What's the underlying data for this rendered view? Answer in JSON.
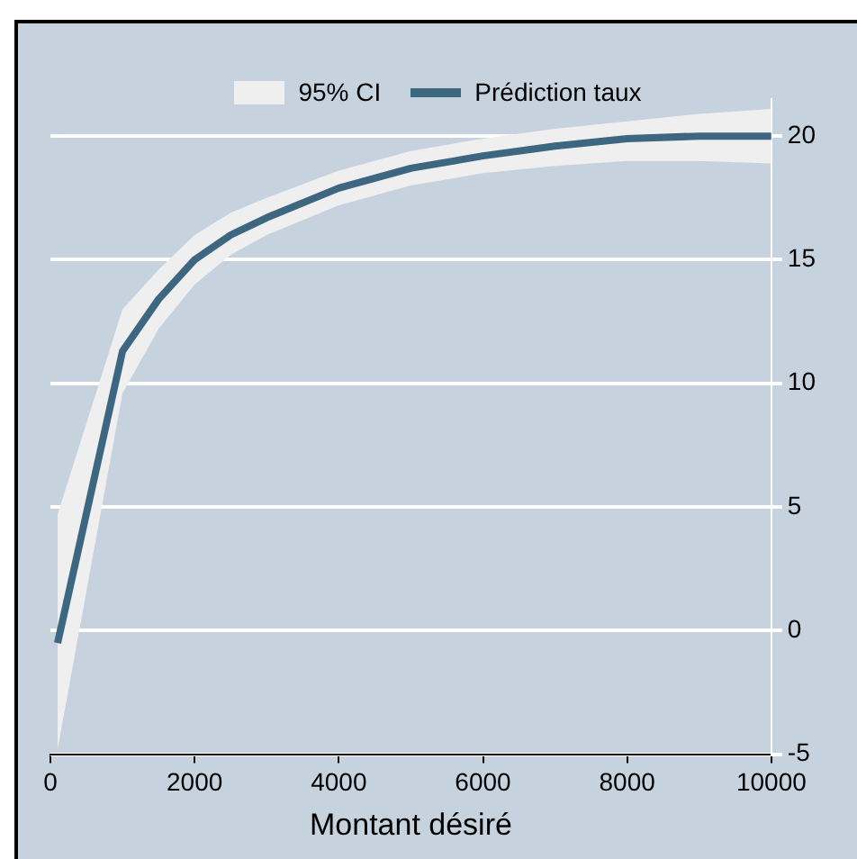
{
  "chart_data": {
    "type": "line",
    "xlabel": "Montant désiré",
    "x": [
      100,
      1000,
      1500,
      2000,
      2500,
      3000,
      4000,
      5000,
      6000,
      7000,
      8000,
      9000,
      10000
    ],
    "series": [
      {
        "name": "Prédiction taux",
        "color": "#3d6680",
        "values": [
          -0.5,
          11.3,
          13.4,
          15.0,
          16.0,
          16.7,
          17.9,
          18.7,
          19.2,
          19.6,
          19.9,
          20.0,
          20.0
        ],
        "lower": [
          -4.8,
          9.6,
          12.2,
          14.0,
          15.2,
          16.0,
          17.2,
          18.0,
          18.5,
          18.8,
          19.0,
          19.0,
          18.9
        ],
        "upper": [
          4.7,
          13.0,
          14.6,
          16.0,
          16.9,
          17.5,
          18.6,
          19.4,
          19.9,
          20.3,
          20.6,
          20.9,
          21.1
        ]
      }
    ],
    "annotations": [
      "95% CI"
    ],
    "xlim": [
      0,
      10000
    ],
    "xticks": [
      0,
      2000,
      4000,
      6000,
      8000,
      10000
    ],
    "ylim": [
      -5,
      21.5
    ],
    "yticks": [
      -5,
      0,
      5,
      10,
      15,
      20
    ],
    "grid": "y",
    "legend": "top",
    "marker": "none",
    "line_style": "solid"
  }
}
